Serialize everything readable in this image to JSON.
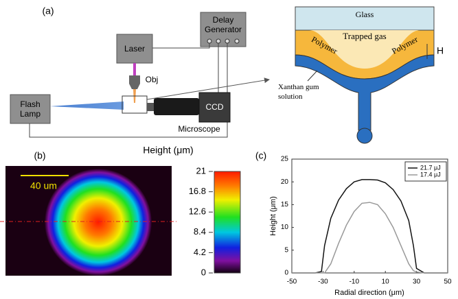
{
  "panel_a": {
    "label": "(a)",
    "setup": {
      "delay_generator": "Delay Generator",
      "laser": "Laser",
      "objective": "Obj",
      "flash_lamp": "Flash Lamp",
      "ccd": "CCD",
      "microscope": "Microscope"
    },
    "inset": {
      "glass": "Glass",
      "trapped_gas": "Trapped gas",
      "polymer_left": "Polymer",
      "polymer_right": "Polymer",
      "height": "H",
      "solution": "Xanthan gum solution"
    }
  },
  "panel_b": {
    "label": "(b)",
    "scale_bar": "40 um",
    "colorbar": {
      "title": "Height (μm)",
      "lim": [
        0,
        21
      ],
      "ticks": [
        0,
        4.2,
        8.4,
        12.6,
        16.8,
        21
      ]
    }
  },
  "chart_data": {
    "type": "line",
    "label": "(c)",
    "x_label": "Radial direction (μm)",
    "y_label": "Height (μm)",
    "x": [
      -50,
      -45,
      -40,
      -35,
      -31,
      -29,
      -25,
      -20,
      -15,
      -10,
      -5,
      0,
      5,
      10,
      15,
      20,
      25,
      28,
      30,
      35,
      40,
      45,
      50
    ],
    "series": [
      {
        "name": "21.7 μJ",
        "color": "#111111",
        "values": [
          0,
          0,
          0,
          0,
          0.3,
          6,
          12,
          16,
          18.5,
          20,
          20.5,
          20.5,
          20.4,
          19.8,
          18.3,
          15.8,
          11.5,
          6,
          1,
          0,
          0,
          0,
          0
        ]
      },
      {
        "name": "17.4 μJ",
        "color": "#999999",
        "values": [
          0,
          0,
          0,
          0,
          0,
          0,
          2,
          6.5,
          10.5,
          13.5,
          15.3,
          15.5,
          15,
          13,
          10,
          6,
          2,
          0.5,
          0.2,
          0,
          0,
          0,
          0
        ]
      }
    ],
    "xlim": [
      -50,
      50
    ],
    "ylim": [
      0,
      25
    ],
    "xticks": [
      -50,
      -30,
      -10,
      10,
      30,
      50
    ],
    "yticks": [
      0,
      5,
      10,
      15,
      20,
      25
    ],
    "legend": "upper right"
  }
}
